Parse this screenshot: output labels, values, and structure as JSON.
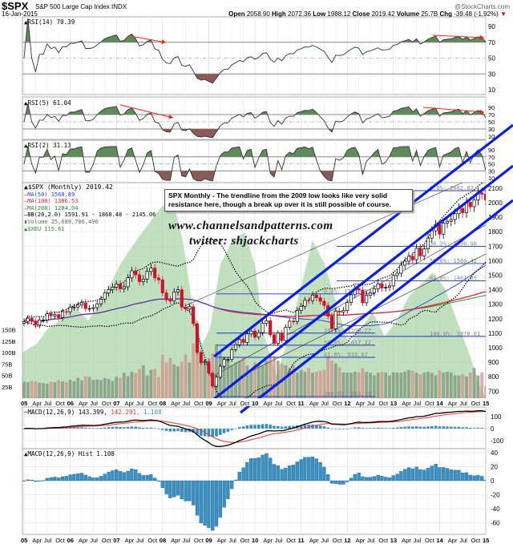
{
  "header": {
    "symbol": "$SPX",
    "name": "S&P 500 Large Cap Index",
    "exchange": "INDX",
    "date": "16-Jan-2015",
    "watermark": "@StockCharts.com",
    "open_label": "Open",
    "open": "2058.90",
    "high_label": "High",
    "high": "2072.36",
    "low_label": "Low",
    "low": "1988.12",
    "close_label": "Close",
    "close": "2019.42",
    "volume_label": "Volume",
    "volume": "25.7B",
    "chg_label": "Chg",
    "chg": "-39.48 (-1.92%)",
    "chg_arrow": "▼"
  },
  "colors": {
    "price_up": "#000000",
    "price_down": "#d0102a",
    "ma50": "#2a3fd6",
    "ma100": "#e0203a",
    "ma200": "#2f8a2f",
    "bb": "#000000",
    "xeu": "#8cc68c",
    "trendline": "#0a1ee6",
    "fib": "#2233cc",
    "rsi_high_fill": "#5f8a5a",
    "rsi_low_fill": "#8a5a55",
    "macd": "#000000",
    "signal": "#ff3333",
    "hist": "#3a8fc0",
    "divergence_arrow": "#ff2020"
  },
  "annotation": {
    "text": "SPX Monthly - The trendline from the 2009 low looks like very solid resistance here, though a break up over it is still possible of course.",
    "website": "www.channelsandpatterns.com",
    "twitter": "twitter: shjackcharts"
  },
  "chart_data": [
    {
      "type": "line",
      "panel": "rsi14",
      "legend": "RSI(14) 70.39",
      "y_ticks": [
        "90",
        "70",
        "50",
        "30",
        "10"
      ],
      "levels": [
        70,
        50,
        30
      ]
    },
    {
      "type": "line",
      "panel": "rsi5",
      "legend": "RSI(5) 61.04",
      "y_ticks": [
        "90",
        "70",
        "50",
        "30",
        "10"
      ],
      "levels": [
        70,
        50,
        30
      ]
    },
    {
      "type": "line",
      "panel": "rsi2",
      "legend": "RSI(2) 31.13",
      "y_ticks": [
        "90",
        "70",
        "50",
        "30",
        "10"
      ],
      "levels": [
        70,
        50,
        30
      ]
    },
    {
      "type": "candlestick",
      "panel": "price",
      "title": "$SPX (Monthly) 2019.42",
      "legend": [
        "MA(50) 1568.89",
        "MA(100) 1386.53",
        "MA(200) 1284.04",
        "BB(20,2.0) 1591.91 - 1868.48 - 2145.06",
        "Volume 25,689,706,496",
        "$XEU 115.61"
      ],
      "x_start": "2005-01",
      "x_end": "2015-01",
      "y_ticks": [
        "2100",
        "2000",
        "1900",
        "1800",
        "1700",
        "1600",
        "1500",
        "1400",
        "1300",
        "1200",
        "1100",
        "1000",
        "900",
        "800",
        "700"
      ],
      "ylim": [
        650,
        2150
      ],
      "volume_ticks": [
        "150B",
        "125B",
        "100B",
        "75B",
        "50B",
        "25B"
      ],
      "monthly_close": [
        1181,
        1204,
        1181,
        1156,
        1191,
        1191,
        1234,
        1220,
        1228,
        1207,
        1249,
        1248,
        1280,
        1280,
        1294,
        1310,
        1270,
        1270,
        1276,
        1303,
        1335,
        1377,
        1400,
        1418,
        1438,
        1406,
        1420,
        1482,
        1530,
        1503,
        1455,
        1473,
        1526,
        1549,
        1481,
        1468,
        1378,
        1330,
        1322,
        1385,
        1400,
        1280,
        1267,
        1282,
        1166,
        968,
        896,
        903,
        825,
        735,
        797,
        872,
        919,
        919,
        987,
        1020,
        1057,
        1036,
        1095,
        1115,
        1073,
        1104,
        1169,
        1186,
        1089,
        1030,
        1101,
        1049,
        1141,
        1183,
        1180,
        1257,
        1286,
        1327,
        1325,
        1363,
        1345,
        1320,
        1292,
        1218,
        1131,
        1253,
        1246,
        1257,
        1312,
        1365,
        1408,
        1397,
        1310,
        1362,
        1379,
        1406,
        1440,
        1412,
        1416,
        1426,
        1498,
        1514,
        1569,
        1597,
        1631,
        1606,
        1685,
        1633,
        1682,
        1756,
        1806,
        1848,
        1783,
        1859,
        1872,
        1884,
        1924,
        1960,
        1931,
        2003,
        1972,
        2018,
        2068,
        2059,
        2019
      ],
      "monthly_volume_billions": [
        36,
        35,
        38,
        37,
        34,
        33,
        32,
        36,
        35,
        40,
        37,
        35,
        40,
        37,
        45,
        39,
        48,
        46,
        40,
        41,
        40,
        44,
        42,
        38,
        47,
        44,
        56,
        48,
        58,
        55,
        64,
        72,
        50,
        62,
        64,
        46,
        95,
        78,
        88,
        74,
        70,
        80,
        96,
        78,
        120,
        135,
        100,
        85,
        88,
        98,
        118,
        100,
        90,
        84,
        72,
        78,
        82,
        88,
        72,
        62,
        78,
        74,
        72,
        82,
        98,
        92,
        82,
        76,
        72,
        66,
        72,
        56,
        62,
        58,
        66,
        56,
        58,
        60,
        62,
        92,
        82,
        76,
        68,
        56,
        56,
        56,
        58,
        56,
        66,
        58,
        56,
        50,
        56,
        58,
        56,
        50,
        56,
        56,
        56,
        58,
        62,
        60,
        56,
        52,
        56,
        58,
        56,
        50,
        60,
        56,
        58,
        56,
        50,
        50,
        52,
        48,
        56,
        66,
        50,
        56,
        26
      ],
      "fibonacci_2009": [
        "0.0%: 1371.25",
        "38.2%: 1100.77",
        "50.0%: 1017.22",
        "61.8%: 933.67",
        "100.0%: 663.19"
      ],
      "fibonacci_2009_values": [
        1371.25,
        1100.77,
        1017.22,
        933.67,
        663.19
      ],
      "fibonacci_2011": [
        "0.0%: 2082.82",
        "38.2%: 1698.98",
        "50.0%: 1580.42",
        "61.8%: 1461.85",
        "100.0%: 1078.01"
      ],
      "fibonacci_2011_values": [
        2082.82,
        1698.98,
        1580.42,
        1461.85,
        1078.01
      ]
    },
    {
      "type": "line",
      "panel": "macd",
      "legend_name": "MACD(12,26,9)",
      "legend_macd": "143.399,",
      "legend_signal": "142.291,",
      "legend_hist": "1.108",
      "y_ticks": [
        "100",
        "0",
        "-100"
      ]
    },
    {
      "type": "bar",
      "panel": "macd_hist",
      "legend": "MACD(12,26,9) Hist 1.108",
      "y_ticks": [
        "40",
        "20",
        "0",
        "-20",
        "-40",
        "-60"
      ]
    }
  ],
  "x_ticks": [
    "05",
    "Apr",
    "Jul",
    "Oct",
    "06",
    "Apr",
    "Jul",
    "Oct",
    "07",
    "Apr",
    "Jul",
    "Oct",
    "08",
    "Apr",
    "Jul",
    "Oct",
    "09",
    "Apr",
    "Jul",
    "Oct",
    "10",
    "Apr",
    "Jul",
    "Oct",
    "11",
    "Apr",
    "Jul",
    "Oct",
    "12",
    "Apr",
    "Jul",
    "Oct",
    "13",
    "Apr",
    "Jul",
    "Oct",
    "14",
    "Apr",
    "Jul",
    "Oct",
    "15"
  ]
}
